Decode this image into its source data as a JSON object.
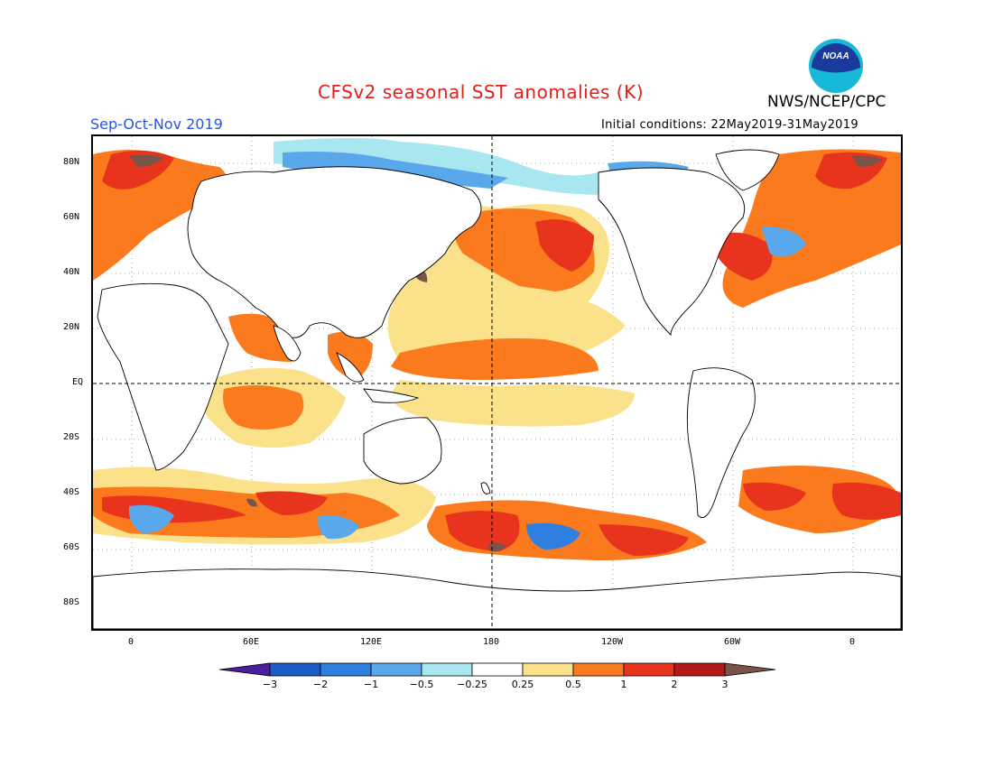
{
  "header": {
    "title": "CFSv2 seasonal SST anomalies (K)",
    "agency": "NWS/NCEP/CPC",
    "season": "Sep-Oct-Nov 2019",
    "initial_conditions": "Initial conditions: 22May2019-31May2019",
    "logo_text": "NOAA"
  },
  "colors": {
    "title": "#e0201b",
    "season": "#2a56d8",
    "logo_outer": "#18b8d8",
    "logo_inner": "#1a3a9c"
  },
  "map": {
    "lat_labels": [
      "80N",
      "60N",
      "40N",
      "20N",
      "EQ",
      "20S",
      "40S",
      "60S",
      "80S"
    ],
    "lon_labels": [
      "0",
      "60E",
      "120E",
      "180",
      "120W",
      "60W",
      "0"
    ]
  },
  "colorbar": {
    "labels": [
      "-3",
      "-2",
      "-1",
      "-0.5",
      "-0.25",
      "0.25",
      "0.5",
      "1",
      "2",
      "3"
    ],
    "colors": [
      "#4a1e9e",
      "#1c5cc8",
      "#2f7fe0",
      "#5aa8ec",
      "#a8e6f0",
      "#ffffff",
      "#fbe28a",
      "#fb7a1e",
      "#e8341c",
      "#b41818",
      "#7a5448"
    ]
  }
}
